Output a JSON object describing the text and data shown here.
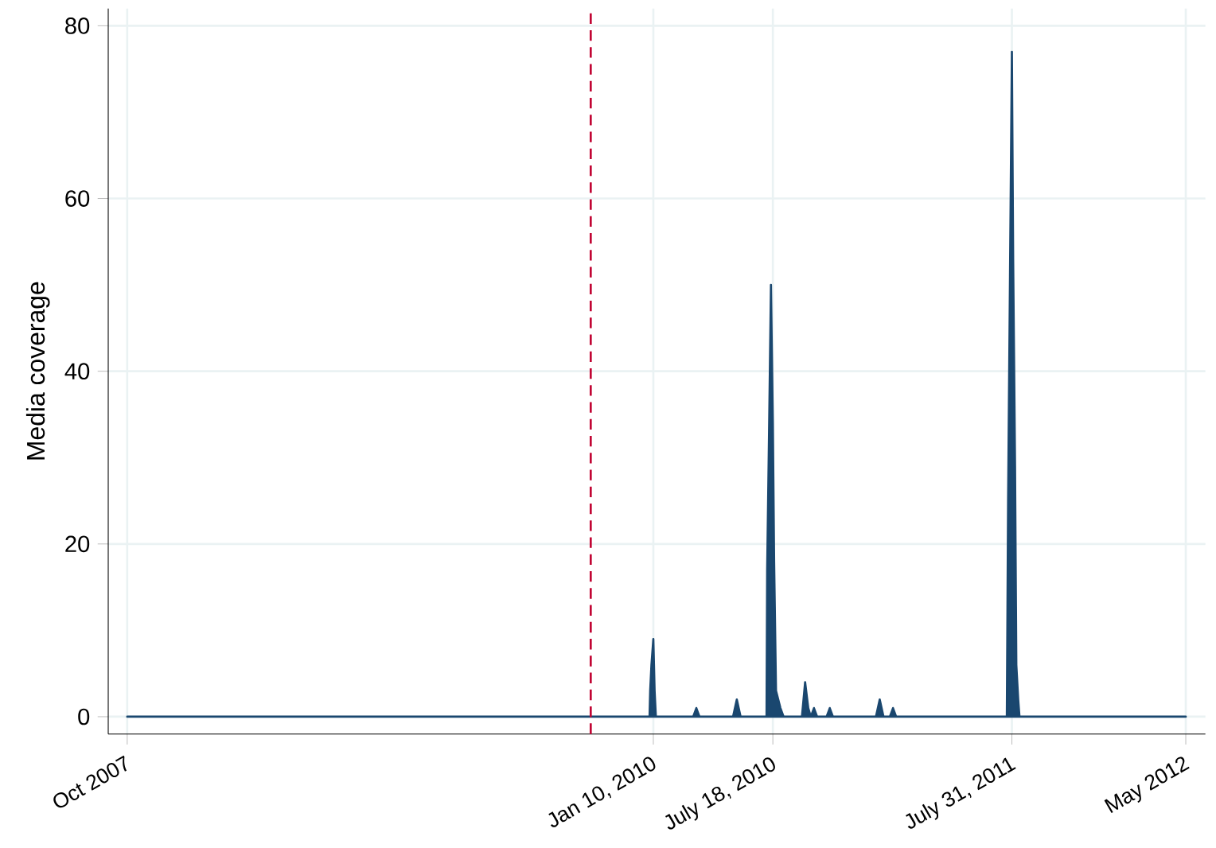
{
  "chart_data": {
    "type": "area",
    "ylabel": "Media coverage",
    "x": [
      "2007-10-01",
      "2010-01-04",
      "2010-01-05",
      "2010-01-07",
      "2010-01-10",
      "2010-01-12",
      "2010-01-14",
      "2010-03-14",
      "2010-03-19",
      "2010-03-24",
      "2010-05-16",
      "2010-05-22",
      "2010-05-28",
      "2010-07-08",
      "2010-07-09",
      "2010-07-12",
      "2010-07-15",
      "2010-07-18",
      "2010-07-20",
      "2010-07-23",
      "2010-07-30",
      "2010-08-04",
      "2010-09-02",
      "2010-09-07",
      "2010-09-12",
      "2010-09-16",
      "2010-09-21",
      "2010-09-26",
      "2010-10-11",
      "2010-10-16",
      "2010-10-21",
      "2010-12-28",
      "2011-01-03",
      "2011-01-09",
      "2011-01-19",
      "2011-01-24",
      "2011-01-29",
      "2011-07-23",
      "2011-07-25",
      "2011-07-28",
      "2011-07-31",
      "2011-08-02",
      "2011-08-05",
      "2011-08-07",
      "2011-08-10",
      "2011-08-12",
      "2012-05-01"
    ],
    "series": [
      {
        "color": "#1a476f",
        "values": [
          0,
          0,
          3,
          6,
          9,
          3,
          0,
          0,
          1,
          0,
          0,
          2,
          0,
          0,
          17,
          33,
          50,
          34,
          18,
          3,
          1,
          0,
          0,
          4,
          1,
          0,
          1,
          0,
          0,
          1,
          0,
          0,
          2,
          0,
          0,
          1,
          0,
          0,
          25,
          51,
          77,
          53,
          29,
          6,
          2,
          0,
          0
        ]
      }
    ],
    "xlim": [
      "2007-09-01",
      "2012-06-01"
    ],
    "xticks": [
      {
        "value": "2007-10-01",
        "label": "Oct 2007"
      },
      {
        "value": "2010-01-10",
        "label": "Jan 10, 2010"
      },
      {
        "value": "2010-07-18",
        "label": "July 18, 2010"
      },
      {
        "value": "2011-07-31",
        "label": "July 31, 2011"
      },
      {
        "value": "2012-05-01",
        "label": "May 2012"
      }
    ],
    "ylim": [
      -2,
      82
    ],
    "yticks": [
      0,
      20,
      40,
      60,
      80
    ],
    "ref_lines": [
      {
        "axis": "x",
        "value": "2009-10-03",
        "color": "#c10534",
        "line_style": "dashed"
      }
    ],
    "grid": true,
    "marker": "none"
  }
}
